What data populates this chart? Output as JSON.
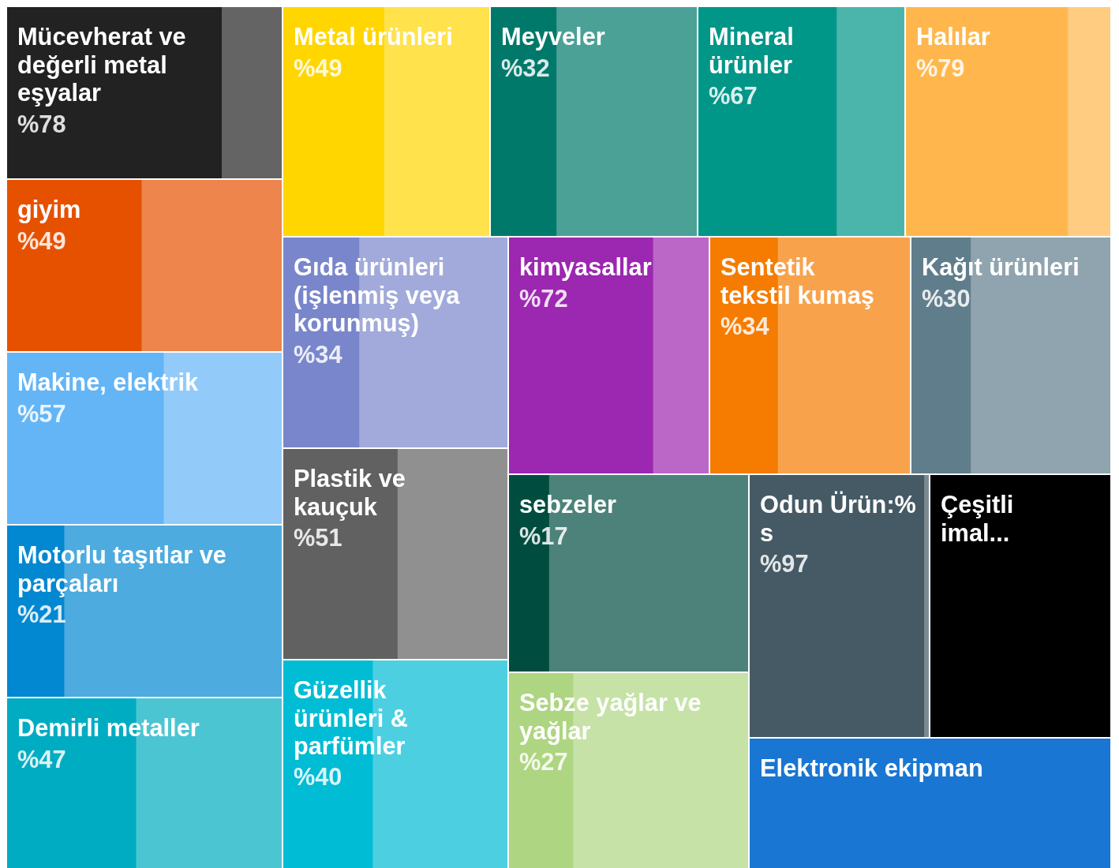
{
  "chart_data": {
    "type": "other",
    "categories": [
      "Mücevherat ve değerli metal eşyalar",
      "giyim",
      "Makine, elektrik",
      "Motorlu taşıtlar ve parçaları",
      "Demirli metaller",
      "Metal ürünleri",
      "Meyveler",
      "Mineral ürünler",
      "Halılar",
      "Gıda ürünleri (işlenmiş veya korunmuş)",
      "Plastik ve kauçuk",
      "Güzellik ürünleri & parfümler",
      "kimyasallar",
      "Sentetik tekstil kumaş",
      "Kağıt ürünleri",
      "sebzeler",
      "Sebze yağlar ve yağlar",
      "Odun Ürün:% s",
      "Çeşitli imal...",
      "Elektronik ekipman"
    ],
    "values": [
      78,
      49,
      57,
      21,
      47,
      49,
      32,
      67,
      79,
      34,
      51,
      40,
      72,
      34,
      30,
      17,
      27,
      97,
      null,
      null
    ],
    "value_labels": [
      "%78",
      "%49",
      "%57",
      "%21",
      "%47",
      "%49",
      "%32",
      "%67",
      "%79",
      "%34",
      "%51",
      "%40",
      "%72",
      "%34",
      "%30",
      "%17",
      "%27",
      "%97",
      null,
      null
    ],
    "colors": [
      "#222222",
      "#e65100",
      "#64b5f6",
      "#0288d1",
      "#00acc1",
      "#ffd600",
      "#00796b",
      "#009688",
      "#ffb74d",
      "#7986cb",
      "#616161",
      "#00bcd4",
      "#9c27b0",
      "#f57c00",
      "#607d8b",
      "#004d40",
      "#aed581",
      "#455a64",
      "#000000",
      "#1976d2"
    ]
  }
}
